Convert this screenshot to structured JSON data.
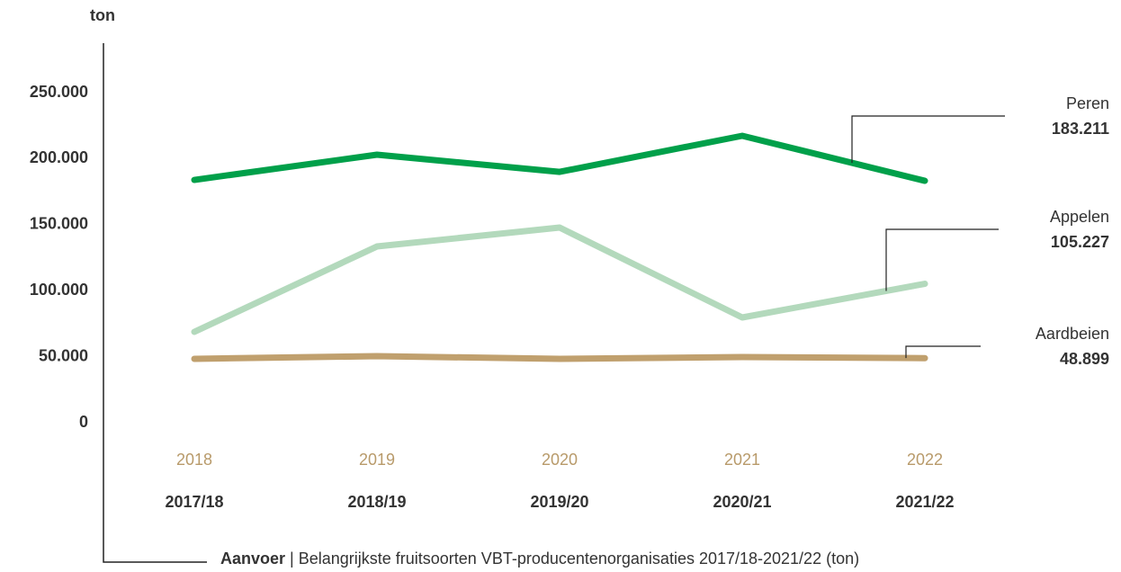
{
  "chart_data": {
    "type": "line",
    "y_label": "ton",
    "categories": [
      "2018",
      "2019",
      "2020",
      "2021",
      "2022"
    ],
    "seasons": [
      "2017/18",
      "2018/19",
      "2019/20",
      "2020/21",
      "2021/22"
    ],
    "series": [
      {
        "name": "Peren",
        "color": "#00a04a",
        "values": [
          183900,
          203000,
          190000,
          217300,
          183211
        ],
        "value_labels": [
          null,
          null,
          null,
          null,
          "183.211"
        ]
      },
      {
        "name": "Appelen",
        "color": "#b3d9bc",
        "values": [
          68800,
          133500,
          147800,
          79700,
          105227
        ],
        "value_labels": [
          null,
          null,
          null,
          null,
          "105.227"
        ]
      },
      {
        "name": "Aardbeien",
        "color": "#c0a06e",
        "values": [
          48400,
          50400,
          48400,
          49700,
          48899
        ],
        "value_labels": [
          null,
          null,
          null,
          null,
          "48.899"
        ]
      }
    ],
    "ylim": [
      0,
      250000
    ],
    "yticks": [
      0,
      {
        "value": 50000,
        "label": "50.000"
      },
      {
        "value": 100000,
        "label": "100.000"
      },
      {
        "value": 150000,
        "label": "150.000"
      },
      {
        "value": 200000,
        "label": "200.000"
      },
      {
        "value": 250000,
        "label": "250.000"
      }
    ],
    "grid": false,
    "caption_bold": "Aanvoer",
    "caption": " | Belangrijkste fruitsoorten VBT-producentenorganisaties 2017/18-2021/22 (ton)"
  }
}
